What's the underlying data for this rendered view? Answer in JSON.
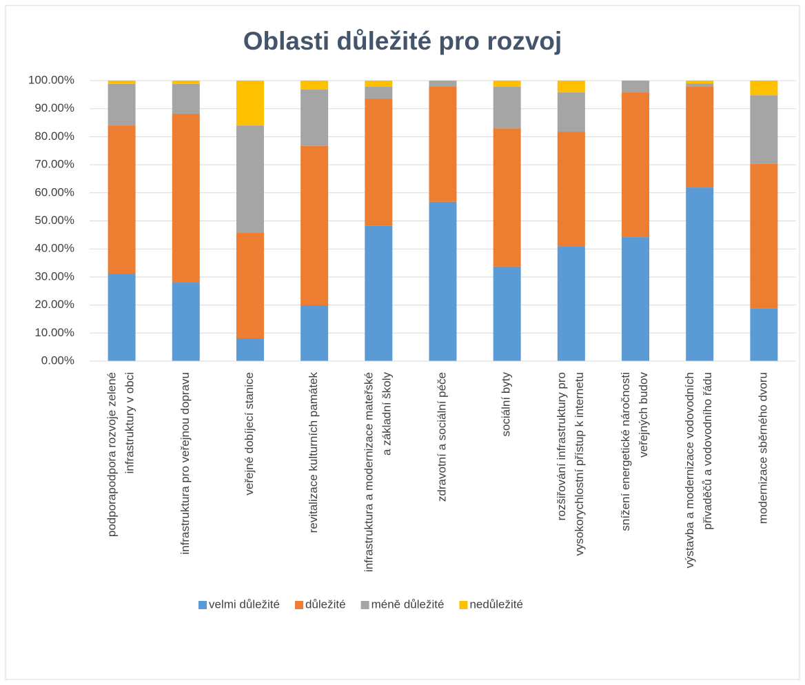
{
  "chart_data": {
    "type": "stacked_bar",
    "title": "Oblasti důležité pro rozvoj",
    "categories": [
      "podporapodpora rozvoje zelené infrastruktury v obci",
      "infrastruktura pro veřejnou dopravu",
      "veřejné dobíjecí stanice",
      "revitalizace kulturních památek",
      "infrastruktura a modernizace mateřské a základní školy",
      "zdravotní a sociální péče",
      "sociální byty",
      "rozšiřování infrastruktury pro vysokorychlostní přístup k internetu",
      "snížení energetické náročnosti veřejných budov",
      "výstavba a modernizace vodovodních přivaděčů a vodovodního řádu",
      "modernizace sběrného dvoru"
    ],
    "series": [
      {
        "name": "velmi důležité",
        "color": "#5b9bd5",
        "values": [
          31.2,
          28.0,
          8.1,
          19.9,
          48.2,
          56.8,
          33.7,
          41.0,
          44.2,
          61.9,
          18.7
        ]
      },
      {
        "name": "důležité",
        "color": "#ed7d31",
        "values": [
          52.8,
          60.2,
          37.8,
          56.8,
          45.4,
          41.2,
          49.3,
          40.8,
          51.6,
          36.1,
          51.6
        ]
      },
      {
        "name": "méně důležité",
        "color": "#a5a5a5",
        "values": [
          14.8,
          10.6,
          38.1,
          20.1,
          4.2,
          2.0,
          14.8,
          14.0,
          4.2,
          1.0,
          24.5
        ]
      },
      {
        "name": "nedůležité",
        "color": "#ffc000",
        "values": [
          1.2,
          1.2,
          16.0,
          3.2,
          2.2,
          0,
          2.2,
          4.2,
          0,
          1.0,
          5.2
        ]
      }
    ],
    "ylim": [
      0,
      100
    ],
    "yticks": [
      {
        "value": 0,
        "label": "0.00%"
      },
      {
        "value": 10,
        "label": "10.00%"
      },
      {
        "value": 20,
        "label": "20.00%"
      },
      {
        "value": 30,
        "label": "30.00%"
      },
      {
        "value": 40,
        "label": "40.00%"
      },
      {
        "value": 50,
        "label": "50.00%"
      },
      {
        "value": 60,
        "label": "60.00%"
      },
      {
        "value": 70,
        "label": "70.00%"
      },
      {
        "value": 80,
        "label": "80.00%"
      },
      {
        "value": 90,
        "label": "90.00%"
      },
      {
        "value": 100,
        "label": "100.00%"
      }
    ],
    "grid": true,
    "legend": "bottom"
  }
}
